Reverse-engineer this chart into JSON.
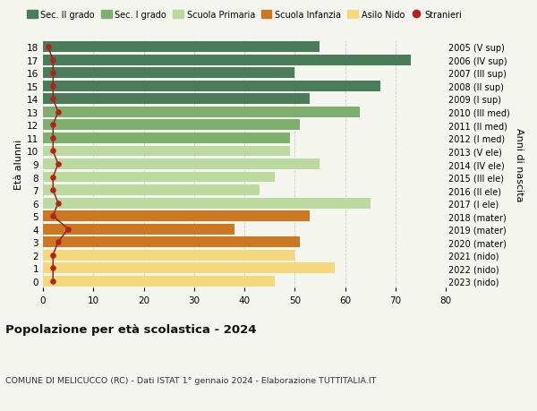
{
  "ages": [
    18,
    17,
    16,
    15,
    14,
    13,
    12,
    11,
    10,
    9,
    8,
    7,
    6,
    5,
    4,
    3,
    2,
    1,
    0
  ],
  "anni_nascita": [
    "2005 (V sup)",
    "2006 (IV sup)",
    "2007 (III sup)",
    "2008 (II sup)",
    "2009 (I sup)",
    "2010 (III med)",
    "2011 (II med)",
    "2012 (I med)",
    "2013 (V ele)",
    "2014 (IV ele)",
    "2015 (III ele)",
    "2016 (II ele)",
    "2017 (I ele)",
    "2018 (mater)",
    "2019 (mater)",
    "2020 (mater)",
    "2021 (nido)",
    "2022 (nido)",
    "2023 (nido)"
  ],
  "bar_values": [
    55,
    73,
    50,
    67,
    53,
    63,
    51,
    49,
    49,
    55,
    46,
    43,
    65,
    53,
    38,
    51,
    50,
    58,
    46
  ],
  "bar_colors": [
    "#4a7c59",
    "#4a7c59",
    "#4a7c59",
    "#4a7c59",
    "#4a7c59",
    "#7faf6e",
    "#7faf6e",
    "#7faf6e",
    "#bcd9a0",
    "#bcd9a0",
    "#bcd9a0",
    "#bcd9a0",
    "#bcd9a0",
    "#cc7722",
    "#cc7722",
    "#cc7722",
    "#f5d87c",
    "#f5d87c",
    "#f5d87c"
  ],
  "stranieri_values": [
    1,
    2,
    2,
    2,
    2,
    3,
    2,
    2,
    2,
    3,
    2,
    2,
    3,
    2,
    5,
    3,
    2,
    2,
    2
  ],
  "title": "Popolazione per età scolastica - 2024",
  "subtitle": "COMUNE DI MELICUCCO (RC) - Dati ISTAT 1° gennaio 2024 - Elaborazione TUTTITALIA.IT",
  "ylabel_left": "Età alunni",
  "ylabel_right": "Anni di nascita",
  "legend_labels": [
    "Sec. II grado",
    "Sec. I grado",
    "Scuola Primaria",
    "Scuola Infanzia",
    "Asilo Nido",
    "Stranieri"
  ],
  "legend_colors": [
    "#4a7c59",
    "#7faf6e",
    "#bcd9a0",
    "#cc7722",
    "#f5d87c",
    "#b22222"
  ],
  "xlim": [
    0,
    80
  ],
  "background_color": "#f5f5ef",
  "grid_color": "#cccccc",
  "stranieri_line_color": "#8b1a1a",
  "stranieri_dot_color": "#b22222"
}
